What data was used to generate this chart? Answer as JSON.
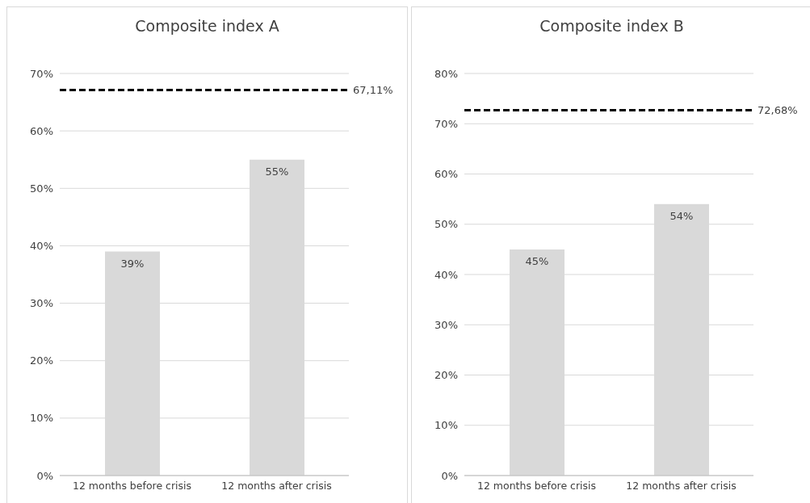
{
  "chart_data": [
    {
      "type": "bar",
      "title": "Composite index A",
      "categories": [
        "12 months before crisis",
        "12 months after crisis"
      ],
      "values": [
        39,
        55
      ],
      "value_labels": [
        "39%",
        "55%"
      ],
      "color": "#d9d9d9",
      "ylim": [
        0,
        70
      ],
      "yticks": [
        {
          "value": 0,
          "label": "0%"
        },
        {
          "value": 10,
          "label": "10%"
        },
        {
          "value": 20,
          "label": "20%"
        },
        {
          "value": 30,
          "label": "30%"
        },
        {
          "value": 40,
          "label": "40%"
        },
        {
          "value": 50,
          "label": "50%"
        },
        {
          "value": 60,
          "label": "60%"
        },
        {
          "value": 70,
          "label": "70%"
        }
      ],
      "ref_lines": [
        {
          "axis": "y",
          "value": 67.11,
          "label": "67,11%",
          "color": "#000000",
          "line_style": "dashed"
        }
      ],
      "grid": "y"
    },
    {
      "type": "bar",
      "title": "Composite index B",
      "categories": [
        "12 months before crisis",
        "12 months after crisis"
      ],
      "values": [
        45,
        54
      ],
      "value_labels": [
        "45%",
        "54%"
      ],
      "color": "#d9d9d9",
      "ylim": [
        0,
        80
      ],
      "yticks": [
        {
          "value": 0,
          "label": "0%"
        },
        {
          "value": 10,
          "label": "10%"
        },
        {
          "value": 20,
          "label": "20%"
        },
        {
          "value": 30,
          "label": "30%"
        },
        {
          "value": 40,
          "label": "40%"
        },
        {
          "value": 50,
          "label": "50%"
        },
        {
          "value": 60,
          "label": "60%"
        },
        {
          "value": 70,
          "label": "70%"
        },
        {
          "value": 80,
          "label": "80%"
        }
      ],
      "ref_lines": [
        {
          "axis": "y",
          "value": 72.68,
          "label": "72,68%",
          "color": "#000000",
          "line_style": "dashed"
        }
      ],
      "grid": "y"
    }
  ]
}
